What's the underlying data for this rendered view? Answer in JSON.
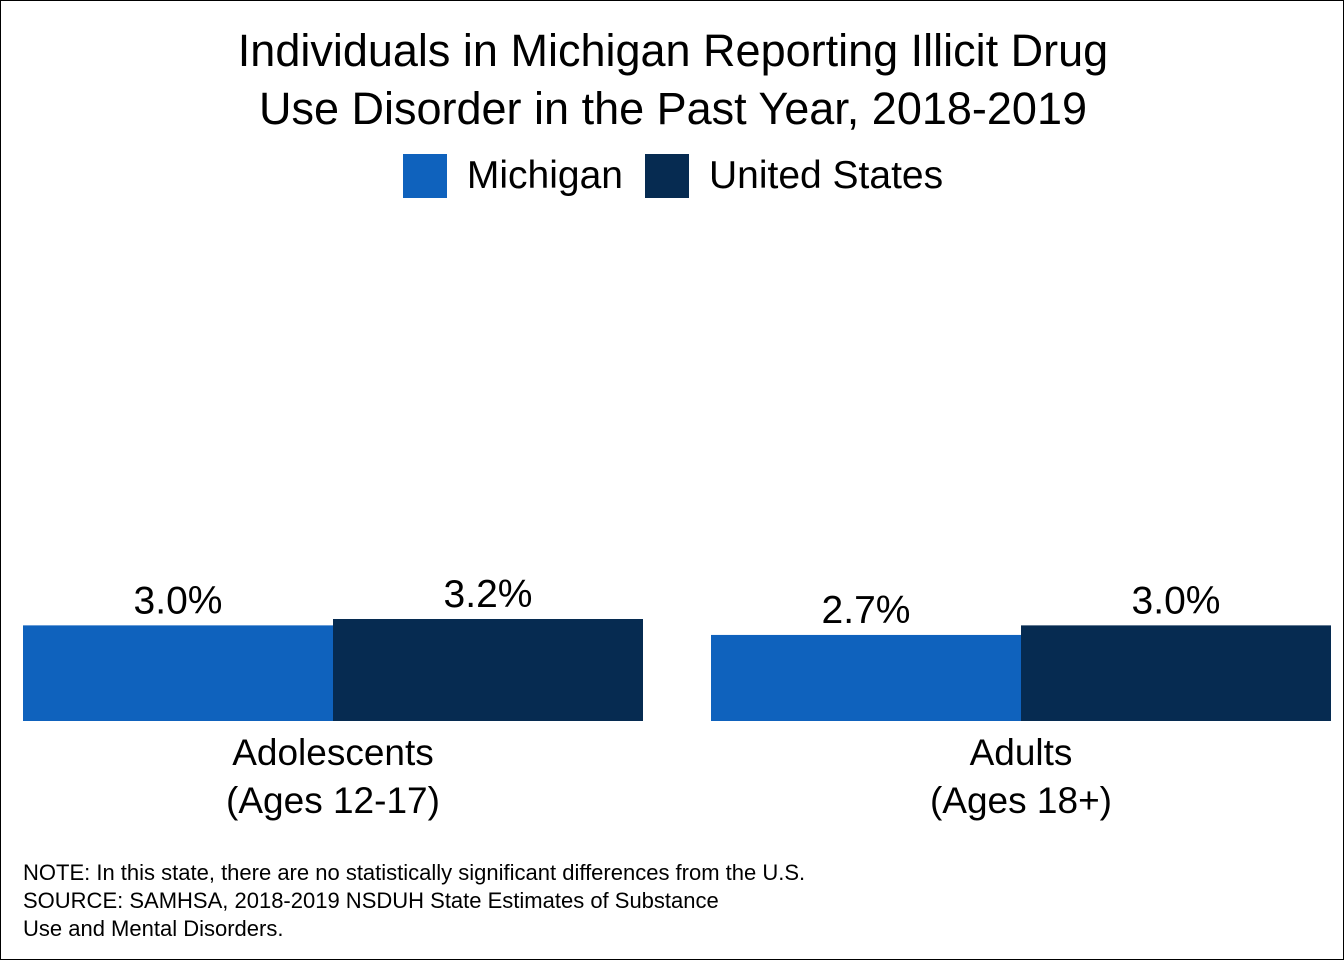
{
  "chart_data": {
    "type": "bar",
    "title_lines": [
      "Individuals in Michigan Reporting Illicit Drug",
      "Use Disorder in the Past Year, 2018-2019"
    ],
    "categories": [
      {
        "line1": "Adolescents",
        "line2": "(Ages 12-17)"
      },
      {
        "line1": "Adults",
        "line2": "(Ages 18+)"
      }
    ],
    "series": [
      {
        "name": "Michigan",
        "color": "#0f62bd",
        "values": [
          3.0,
          2.7
        ],
        "labels": [
          "3.0%",
          "2.7%"
        ]
      },
      {
        "name": "United States",
        "color": "#062b51",
        "values": [
          3.2,
          3.0
        ],
        "labels": [
          "3.2%",
          "3.0%"
        ]
      }
    ],
    "ylim": [
      0,
      16
    ],
    "legend_position": "top-center",
    "grid": false
  },
  "notes": [
    "NOTE: In this state, there are no statistically significant differences from the U.S.",
    "SOURCE: SAMHSA, 2018-2019 NSDUH State Estimates of Substance",
    "Use and Mental Disorders."
  ]
}
